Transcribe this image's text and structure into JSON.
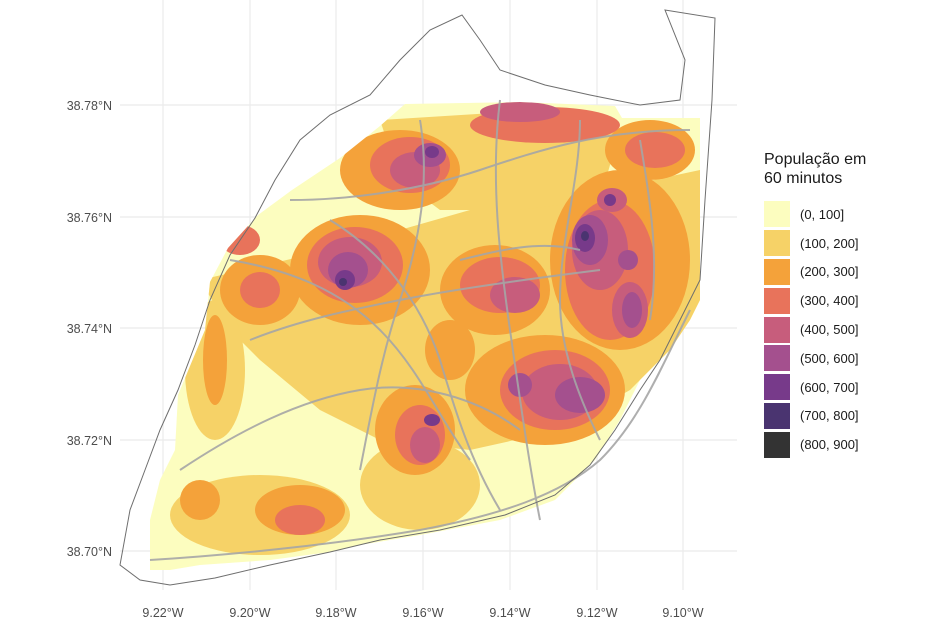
{
  "map": {
    "x_ticks": [
      "9.22°W",
      "9.20°W",
      "9.18°W",
      "9.16°W",
      "9.14°W",
      "9.12°W",
      "9.10°W"
    ],
    "y_ticks": [
      "38.78°N",
      "38.76°N",
      "38.74°N",
      "38.72°N",
      "38.70°N"
    ]
  },
  "legend": {
    "title": "População em\n60 minutos",
    "items": [
      {
        "label": "(0, 100]",
        "color": "#fcfdbf"
      },
      {
        "label": "(100, 200]",
        "color": "#f6d267"
      },
      {
        "label": "(200, 300]",
        "color": "#f4a23a"
      },
      {
        "label": "(300, 400]",
        "color": "#e8735b"
      },
      {
        "label": "(400, 500]",
        "color": "#c75d7c"
      },
      {
        "label": "(500, 600]",
        "color": "#a4508e"
      },
      {
        "label": "(600, 700]",
        "color": "#773a8a"
      },
      {
        "label": "(700, 800]",
        "color": "#4a3470"
      },
      {
        "label": "(800, 900]",
        "color": "#333333"
      }
    ]
  }
}
